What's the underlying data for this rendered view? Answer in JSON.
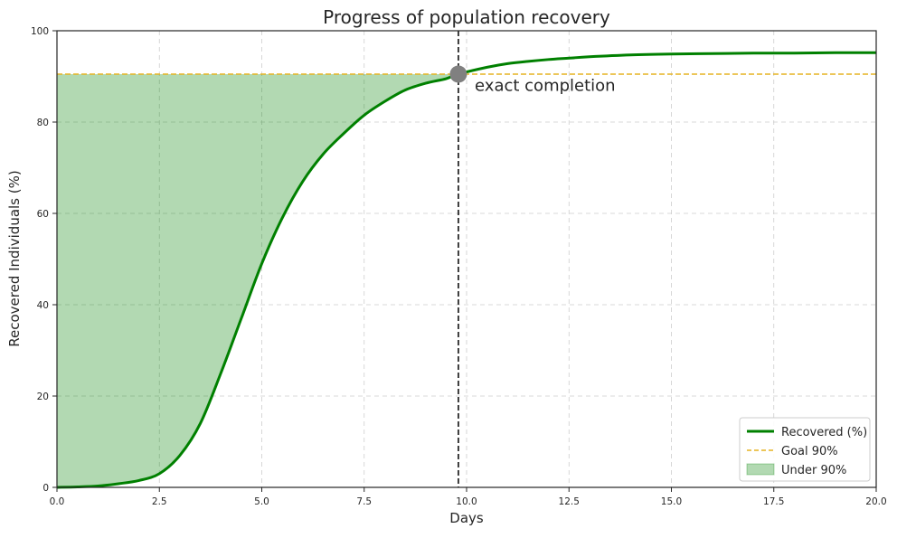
{
  "chart_data": {
    "type": "line",
    "title": "Progress of population recovery",
    "xlabel": "Days",
    "ylabel": "Recovered Individuals (%)",
    "xlim": [
      0,
      20
    ],
    "ylim": [
      0,
      100
    ],
    "xticks": [
      "0.0",
      "2.5",
      "5.0",
      "7.5",
      "10.0",
      "12.5",
      "15.0",
      "17.5",
      "20.0"
    ],
    "yticks": [
      "0",
      "20",
      "40",
      "60",
      "80",
      "100"
    ],
    "grid": true,
    "legend_position": "lower-right",
    "series": [
      {
        "name": "Recovered (%)",
        "color": "#008000",
        "x": [
          0,
          0.5,
          1,
          1.5,
          2,
          2.5,
          3,
          3.5,
          4,
          4.5,
          5,
          5.5,
          6,
          6.5,
          7,
          7.5,
          8,
          8.5,
          9,
          9.5,
          9.8,
          10.5,
          11,
          11.5,
          12,
          12.5,
          13,
          14,
          15,
          16,
          17,
          18,
          19,
          20
        ],
        "y": [
          0,
          0.1,
          0.3,
          0.8,
          1.5,
          3,
          7,
          14,
          25,
          37,
          49,
          59,
          67,
          73,
          77.5,
          81.5,
          84.5,
          87,
          88.5,
          89.5,
          90.5,
          92,
          92.8,
          93.3,
          93.7,
          94,
          94.3,
          94.7,
          94.9,
          95,
          95.1,
          95.1,
          95.2,
          95.2
        ]
      }
    ],
    "goal_line": {
      "name": "Goal 90%",
      "y": 90.5,
      "color": "#e6b422"
    },
    "fill_area": {
      "name": "Under 90%",
      "color": "#008000"
    },
    "vertical_line": {
      "x": 9.8
    },
    "marker": {
      "x": 9.8,
      "y": 90.5,
      "color": "#808080"
    },
    "annotation": {
      "text": "exact completion",
      "x": 10.2,
      "y": 86.8
    }
  }
}
